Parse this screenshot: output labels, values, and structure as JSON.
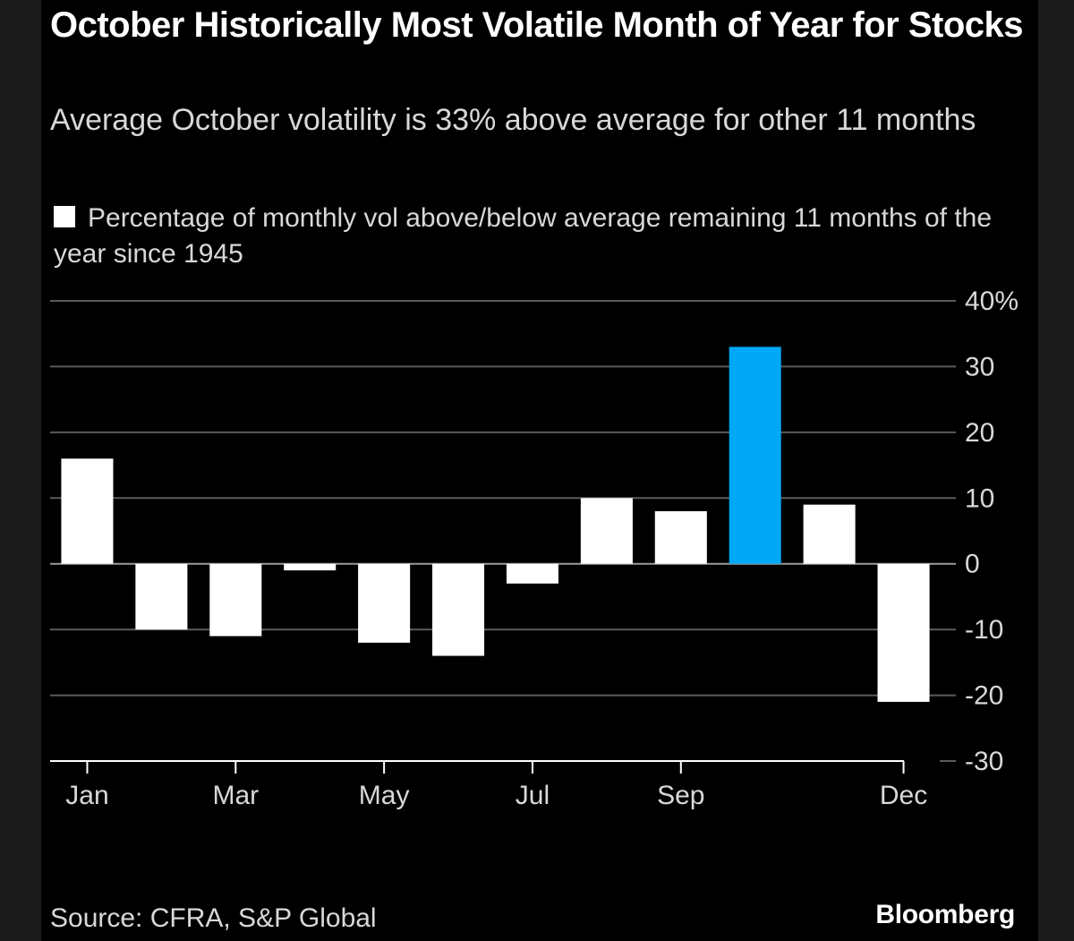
{
  "header": {
    "title": "October Historically Most Volatile Month of Year for Stocks",
    "subtitle": "Average October volatility is 33% above average for other 11 months"
  },
  "legend": {
    "label": "Percentage of monthly vol above/below average remaining 11 months of the year since 1945"
  },
  "footer": {
    "source": "Source: CFRA, S&P Global",
    "brand": "Bloomberg"
  },
  "chart_data": {
    "type": "bar",
    "categories": [
      "Jan",
      "Feb",
      "Mar",
      "Apr",
      "May",
      "Jun",
      "Jul",
      "Aug",
      "Sep",
      "Oct",
      "Nov",
      "Dec"
    ],
    "values": [
      16,
      -10,
      -11,
      -1,
      -12,
      -14,
      -3,
      10,
      8,
      33,
      9,
      -21
    ],
    "x_tick_labels": [
      "Jan",
      "Mar",
      "May",
      "Jul",
      "Sep",
      "Dec"
    ],
    "y_ticks": [
      -30,
      -20,
      -10,
      0,
      10,
      20,
      30,
      40
    ],
    "y_tick_labels": [
      "-30",
      "-20",
      "-10",
      "0",
      "10",
      "20",
      "30",
      "40%"
    ],
    "ylim": [
      -30,
      40
    ],
    "grid": true,
    "axis_position": "right",
    "colors": {
      "bar": "#ffffff",
      "highlight": "#00a8f5",
      "background": "#000000",
      "grid": "#5a5a5a"
    },
    "highlight_category": "Oct"
  }
}
